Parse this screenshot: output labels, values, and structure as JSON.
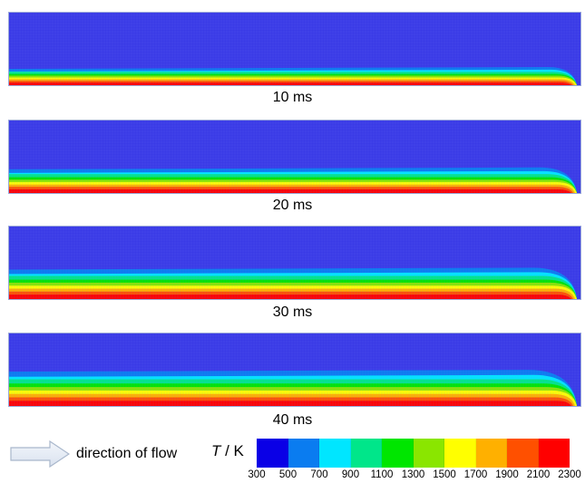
{
  "panels": [
    {
      "label": "10 ms",
      "time_ms": 10
    },
    {
      "label": "20 ms",
      "time_ms": 20
    },
    {
      "label": "30 ms",
      "time_ms": 30
    },
    {
      "label": "40 ms",
      "time_ms": 40
    }
  ],
  "legend": {
    "flow_text": "direction of flow",
    "axis_var": "T",
    "axis_unit": " / K",
    "ticks": [
      "300",
      "500",
      "700",
      "900",
      "1100",
      "1300",
      "1500",
      "1700",
      "1900",
      "2100",
      "2300"
    ],
    "colors": [
      "#0a00e6",
      "#0a7cf0",
      "#00e6ff",
      "#00e68a",
      "#00e600",
      "#8ae600",
      "#ffff00",
      "#ffb000",
      "#ff5000",
      "#ff0000"
    ]
  },
  "background_color": "#3a3ae6"
}
